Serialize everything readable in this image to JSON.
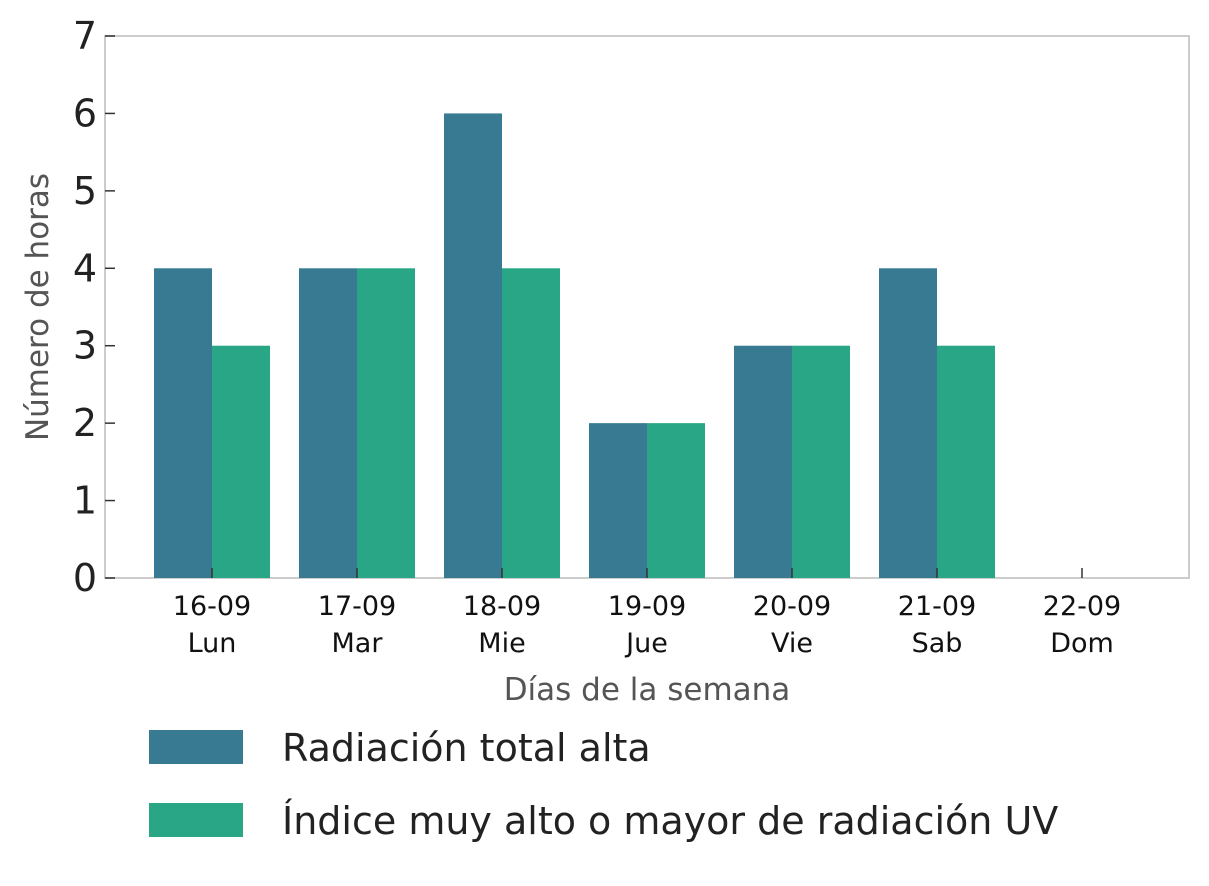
{
  "chart_data": {
    "type": "bar",
    "categories": [
      [
        "16-09",
        "Lun"
      ],
      [
        "17-09",
        "Mar"
      ],
      [
        "18-09",
        "Mie"
      ],
      [
        "19-09",
        "Jue"
      ],
      [
        "20-09",
        "Vie"
      ],
      [
        "21-09",
        "Sab"
      ],
      [
        "22-09",
        "Dom"
      ]
    ],
    "series": [
      {
        "name": "Radiación total alta",
        "color": "#377a92",
        "values": [
          4,
          4,
          6,
          2,
          3,
          4,
          0
        ]
      },
      {
        "name": "Índice muy alto o mayor de radiación UV",
        "color": "#28a685",
        "values": [
          3,
          4,
          4,
          2,
          3,
          3,
          0
        ]
      }
    ],
    "xlabel": "Días de la semana",
    "ylabel": "Número de horas",
    "ylim": [
      0,
      7
    ],
    "yticks": [
      0,
      1,
      2,
      3,
      4,
      5,
      6,
      7
    ],
    "grid": false,
    "legend_position": "bottom"
  }
}
